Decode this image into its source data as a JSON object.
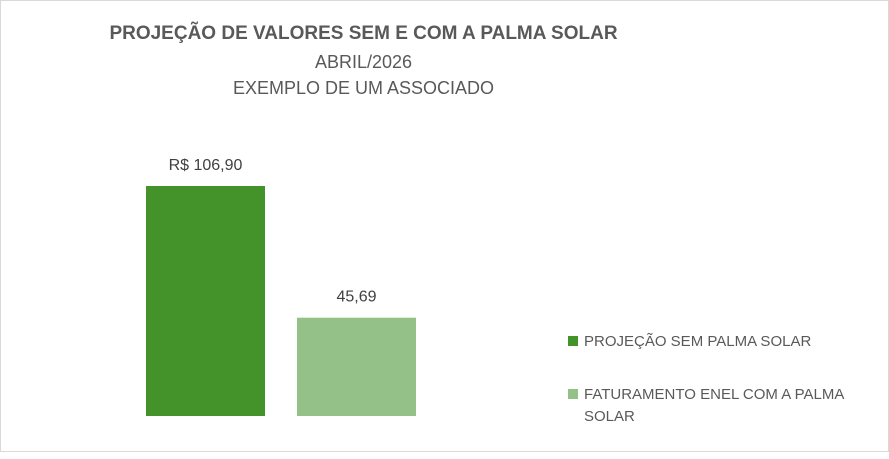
{
  "chart_data": {
    "type": "bar",
    "title": "PROJEÇÃO DE VALORES SEM E COM A PALMA SOLAR",
    "subtitle_lines": [
      "ABRIL/2026",
      "EXEMPLO DE UM ASSOCIADO"
    ],
    "categories": [
      "PROJEÇÃO SEM PALMA SOLAR",
      "FATURAMENTO ENEL COM A PALMA SOLAR"
    ],
    "values": [
      106.9,
      45.69
    ],
    "data_labels": [
      "R$ 106,90",
      "45,69"
    ],
    "colors": [
      "#43922a",
      "#93c187"
    ],
    "ylim": [
      0,
      106.9
    ],
    "grid": false,
    "legend_position": "right"
  }
}
